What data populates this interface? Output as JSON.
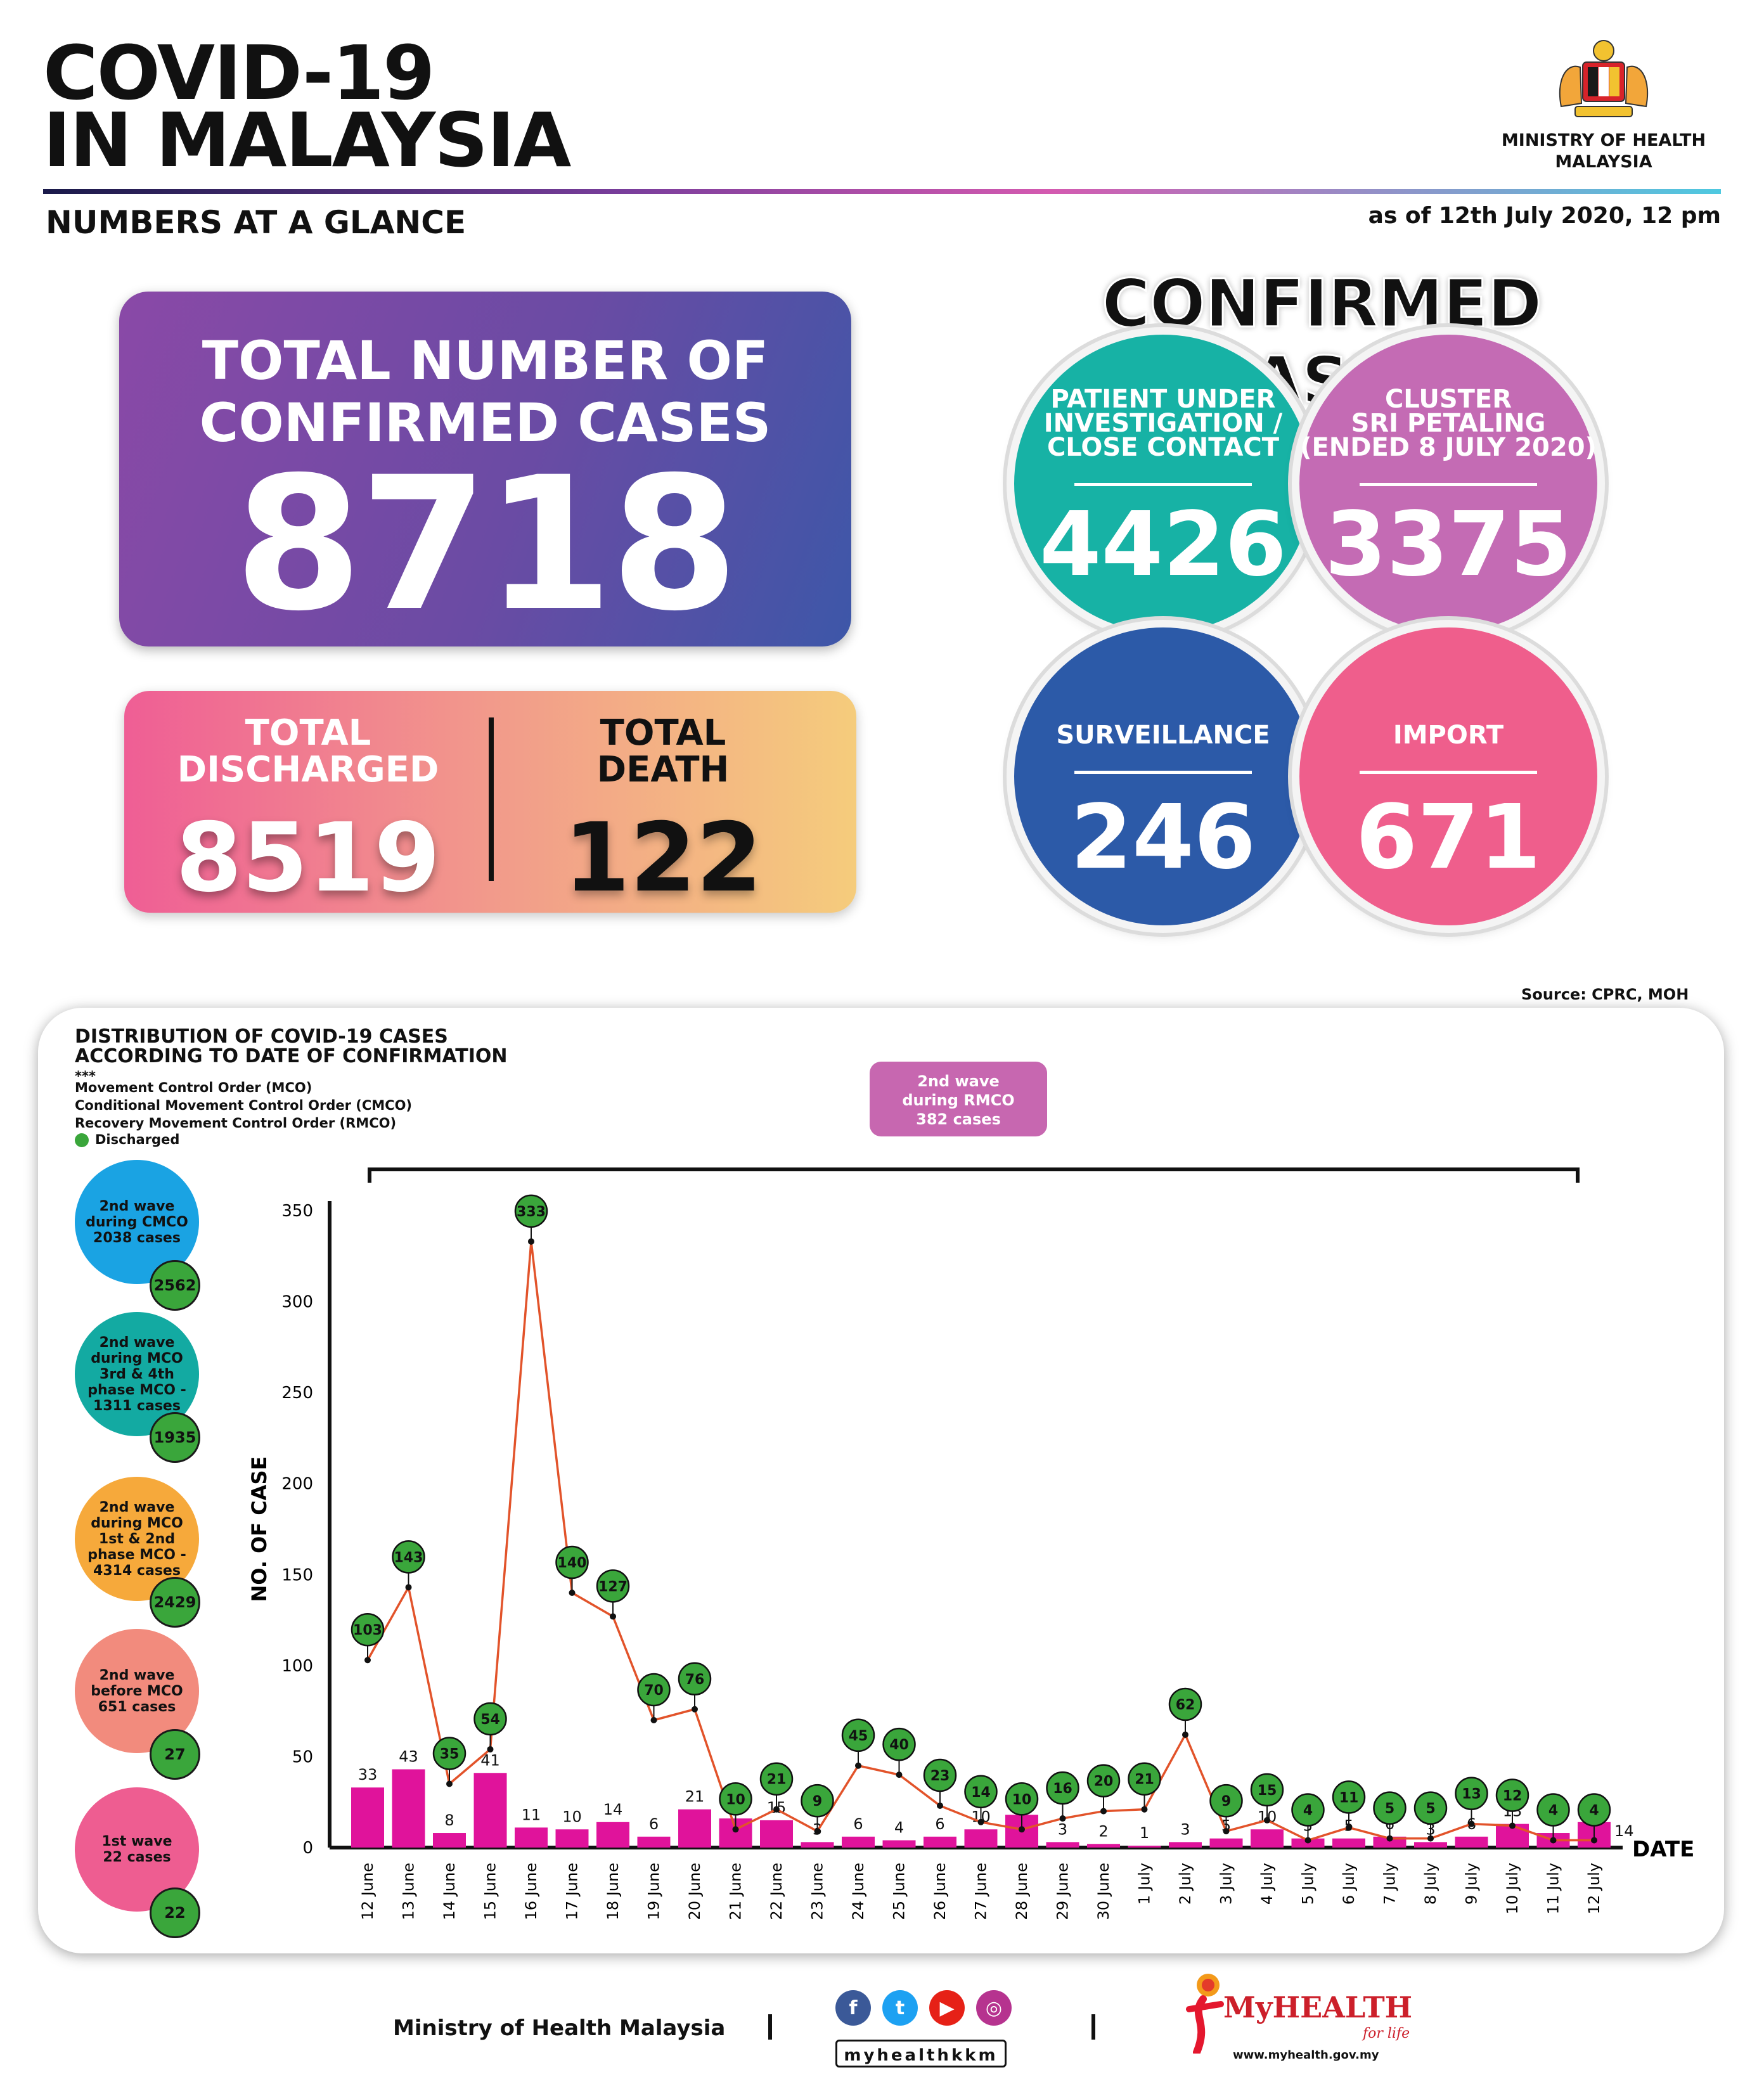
{
  "header": {
    "title_line1": "COVID-19",
    "title_line2": "IN MALAYSIA",
    "subtitle": "NUMBERS AT A GLANCE",
    "as_of": "as of 12th July 2020, 12 pm",
    "ministry_line1": "MINISTRY OF HEALTH",
    "ministry_line2": "MALAYSIA"
  },
  "totals": {
    "confirmed_label_1": "TOTAL NUMBER OF",
    "confirmed_label_2": "CONFIRMED CASES",
    "confirmed_value": "8718",
    "discharged_label_1": "TOTAL",
    "discharged_label_2": "DISCHARGED",
    "discharged_value": "8519",
    "death_label_1": "TOTAL",
    "death_label_2": "DEATH",
    "death_value": "122"
  },
  "confirmed_cases": {
    "title": "CONFIRMED CASES",
    "pui": {
      "l1": "PATIENT UNDER",
      "l2": "INVESTIGATION /",
      "l3": "CLOSE CONTACT",
      "value": "4426",
      "color": "#17b2a5"
    },
    "cluster": {
      "l1": "CLUSTER",
      "l2": "SRI PETALING",
      "l3": "(ENDED 8 JULY 2020)",
      "value": "3375",
      "color": "#c46bb4"
    },
    "surveillance": {
      "l1": "SURVEILLANCE",
      "value": "246",
      "color": "#2c5aa8"
    },
    "import": {
      "l1": "IMPORT",
      "value": "671",
      "color": "#ef5e8c"
    }
  },
  "source": "Source: CPRC, MOH",
  "chart_header": {
    "line1": "DISTRIBUTION OF COVID-19 CASES",
    "line2": "ACCORDING TO DATE OF CONFIRMATION",
    "stars": "***",
    "mco": "Movement Control Order (MCO)",
    "cmco": "Conditional Movement Control Order (CMCO)",
    "rmco": "Recovery Movement Control Order (RMCO)",
    "discharged": "Discharged"
  },
  "waves": [
    {
      "l1": "2nd wave",
      "l2": "during CMCO",
      "l3": "2038 cases",
      "l4": "",
      "l5": "",
      "discharged": "2562",
      "color": "#1aa3e3"
    },
    {
      "l1": "2nd wave",
      "l2": "during MCO",
      "l3": "3rd & 4th",
      "l4": "phase MCO -",
      "l5": "1311 cases",
      "discharged": "1935",
      "color": "#13aaa2"
    },
    {
      "l1": "2nd wave",
      "l2": "during MCO",
      "l3": "1st & 2nd",
      "l4": "phase MCO -",
      "l5": "4314 cases",
      "discharged": "2429",
      "color": "#f6a93b"
    },
    {
      "l1": "2nd wave",
      "l2": "before MCO",
      "l3": "651 cases",
      "l4": "",
      "l5": "",
      "discharged": "27",
      "color": "#f28b7d"
    },
    {
      "l1": "1st wave",
      "l2": "22 cases",
      "l3": "",
      "l4": "",
      "l5": "",
      "discharged": "22",
      "color": "#ee5d91"
    }
  ],
  "rmco_box": {
    "l1": "2nd wave",
    "l2": "during RMCO",
    "l3": "382 cases"
  },
  "chart_data": {
    "type": "bar",
    "ylabel": "NO. OF CASE",
    "xlabel": "DATE",
    "ylim": [
      0,
      350
    ],
    "yticks": [
      0,
      50,
      100,
      150,
      200,
      250,
      300,
      350
    ],
    "categories": [
      "12 June",
      "13 June",
      "14 June",
      "15 June",
      "16 June",
      "17 June",
      "18 June",
      "19 June",
      "20 June",
      "21 June",
      "22 June",
      "23 June",
      "24 June",
      "25 June",
      "26 June",
      "27 June",
      "28 June",
      "29 June",
      "30 June",
      "1 July",
      "2 July",
      "3 July",
      "4 July",
      "5 July",
      "6 July",
      "7 July",
      "8 July",
      "9 July",
      "10 July",
      "11 July",
      "12 July"
    ],
    "series": [
      {
        "type": "bar",
        "values": [
          33,
          43,
          8,
          41,
          11,
          10,
          14,
          6,
          21,
          16,
          15,
          3,
          6,
          4,
          6,
          10,
          18,
          3,
          2,
          1,
          3,
          5,
          10,
          5,
          5,
          6,
          3,
          6,
          13,
          8,
          14
        ],
        "color": "#e0139b"
      },
      {
        "type": "line",
        "name": "Discharged",
        "values": [
          103,
          143,
          35,
          54,
          333,
          140,
          127,
          70,
          76,
          10,
          21,
          9,
          45,
          40,
          23,
          14,
          10,
          16,
          20,
          21,
          62,
          9,
          15,
          4,
          11,
          5,
          5,
          13,
          12,
          4,
          4
        ],
        "color": "#e2532a",
        "marker_color": "#3aa63b"
      }
    ],
    "grid": false
  },
  "footer": {
    "ministry": "Ministry of Health Malaysia",
    "handle": "myhealthkkm",
    "brand": "MyHEALTH",
    "tagline": "for life",
    "url": "www.myhealth.gov.my"
  }
}
